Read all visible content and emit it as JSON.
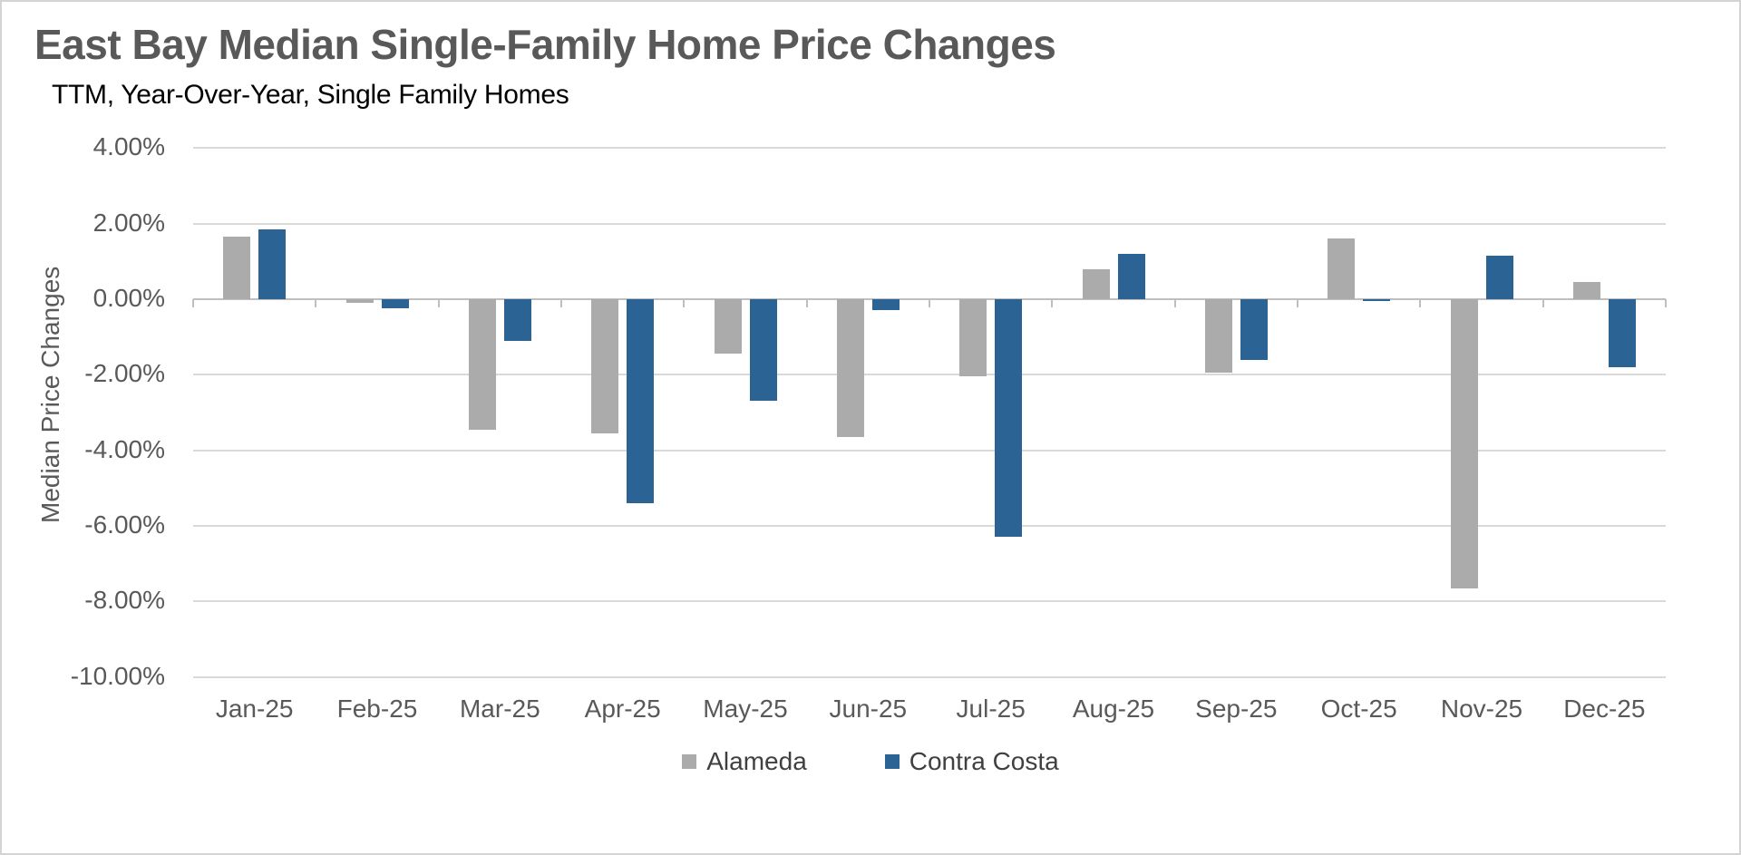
{
  "header": {
    "title": "East Bay Median Single-Family Home Price Changes",
    "subtitle": "TTM, Year-Over-Year, Single Family Homes"
  },
  "y_axis": {
    "title": "Median Price Changes",
    "tick_labels": [
      "4.00%",
      "2.00%",
      "0.00%",
      "-2.00%",
      "-4.00%",
      "-6.00%",
      "-8.00%",
      "-10.00%"
    ],
    "tick_values": [
      4,
      2,
      0,
      -2,
      -4,
      -6,
      -8,
      -10
    ]
  },
  "legend": [
    {
      "label": "Alameda",
      "color": "#ABABAB"
    },
    {
      "label": "Contra Costa",
      "color": "#2B6394"
    }
  ],
  "colors": {
    "gridline": "#D9D9D9",
    "axis_line": "#BFBFBF",
    "tick_label": "#595959",
    "title": "#595959",
    "subtitle": "#000000",
    "background": "#FFFFFF",
    "alameda": "#ABABAB",
    "contra_costa": "#2B6394"
  },
  "chart_data": {
    "type": "bar",
    "title": "East Bay Median Single-Family Home Price Changes",
    "subtitle": "TTM, Year-Over-Year, Single Family Homes",
    "ylabel": "Median Price Changes",
    "xlabel": "",
    "categories": [
      "Jan-25",
      "Feb-25",
      "Mar-25",
      "Apr-25",
      "May-25",
      "Jun-25",
      "Jul-25",
      "Aug-25",
      "Sep-25",
      "Oct-25",
      "Nov-25",
      "Dec-25"
    ],
    "series": [
      {
        "name": "Alameda",
        "color": "#ABABAB",
        "values": [
          1.65,
          -0.1,
          -3.45,
          -3.55,
          -1.45,
          -3.65,
          -2.05,
          0.8,
          -1.95,
          1.6,
          -7.65,
          0.45
        ]
      },
      {
        "name": "Contra Costa",
        "color": "#2B6394",
        "values": [
          1.85,
          -0.25,
          -1.1,
          -5.4,
          -2.7,
          -0.3,
          -6.3,
          1.2,
          -1.6,
          -0.05,
          1.15,
          -1.8
        ]
      }
    ],
    "value_format": "percent",
    "ylim": [
      -10,
      4
    ],
    "y_tick_step": 2,
    "grid": true,
    "legend_position": "bottom"
  }
}
